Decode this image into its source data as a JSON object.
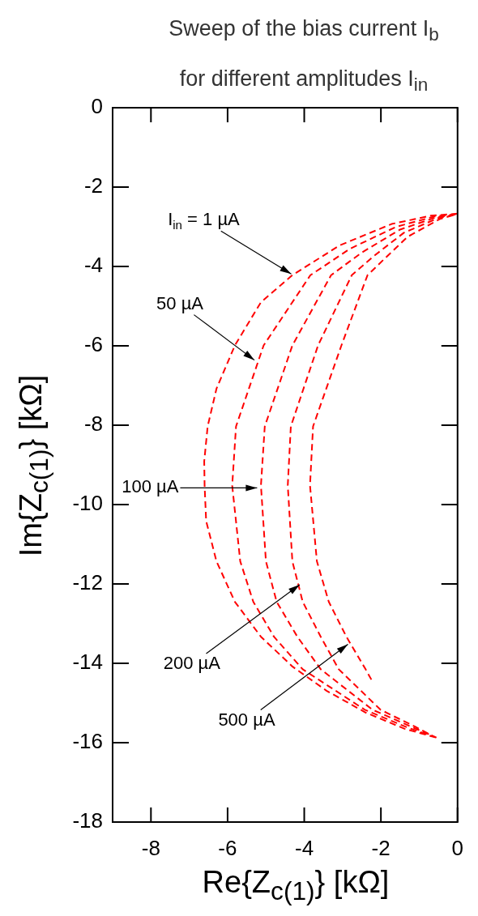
{
  "chart_data": {
    "type": "line",
    "title": "Sweep of the bias current I$_{b}$ for different amplitudes I$_{in}$",
    "xlabel": "Re{Z$_{c(1)}$} [kΩ]",
    "ylabel": "Im{Z$_{c(1)}$} [kΩ]",
    "xlim": [
      -9,
      0
    ],
    "xticks": [
      -8,
      -6,
      -4,
      -2,
      0
    ],
    "ylim": [
      -18,
      0
    ],
    "yticks": [
      -18,
      -16,
      -14,
      -12,
      -10,
      -8,
      -6,
      -4,
      -2,
      0
    ],
    "grid": false,
    "legend": false,
    "marker": "none",
    "line_style": "dashed",
    "series": [
      {
        "color": "#ff0000",
        "x": [
          0,
          -0.7,
          -1.72,
          -3.08,
          -4.31,
          -5.13,
          -5.81,
          -6.29,
          -6.52,
          -6.61,
          -6.6,
          -6.56,
          -6.29,
          -5.81,
          -5.13,
          -4.31,
          -3.42,
          -2.4,
          -1.38,
          -0.49
        ],
        "values": [
          -2.67,
          -2.72,
          -2.93,
          -3.47,
          -4.22,
          -4.9,
          -5.99,
          -7.08,
          -8.03,
          -8.91,
          -9.52,
          -10.41,
          -11.43,
          -12.45,
          -13.33,
          -14.08,
          -14.69,
          -15.24,
          -15.65,
          -15.89
        ]
      },
      {
        "color": "#ff0000",
        "x": [
          -0.03,
          -0.6,
          -1.6,
          -2.8,
          -3.84,
          -5.06,
          -5.78,
          -5.88,
          -5.67,
          -5.33,
          -4.79,
          -4.04,
          -2.42,
          -1.3,
          -0.55
        ],
        "values": [
          -2.68,
          -2.74,
          -3.0,
          -3.55,
          -4.22,
          -5.99,
          -8.03,
          -9.52,
          -11.43,
          -12.45,
          -13.33,
          -14.15,
          -15.17,
          -15.62,
          -15.87
        ]
      },
      {
        "color": "#ff0000",
        "x": [
          -0.06,
          -0.55,
          -1.5,
          -2.5,
          -3.3,
          -4.31,
          -5.03,
          -5.13,
          -5.0,
          -4.72,
          -4.18,
          -3.57,
          -2.22,
          -1.2,
          -0.6
        ],
        "values": [
          -2.69,
          -2.76,
          -3.07,
          -3.65,
          -4.22,
          -5.99,
          -8.03,
          -9.52,
          -11.43,
          -12.45,
          -13.33,
          -14.15,
          -15.17,
          -15.6,
          -15.85
        ]
      },
      {
        "color": "#ff0000",
        "x": [
          -0.09,
          -0.5,
          -1.4,
          -2.2,
          -2.76,
          -3.64,
          -4.35,
          -4.43,
          -4.31,
          -4.04,
          -3.57,
          -3.1,
          -2.01,
          -1.1,
          -0.65
        ],
        "values": [
          -2.7,
          -2.78,
          -3.15,
          -3.75,
          -4.22,
          -5.99,
          -8.03,
          -9.52,
          -11.43,
          -12.45,
          -13.33,
          -14.15,
          -15.17,
          -15.6,
          -15.83
        ]
      },
      {
        "color": "#ff0000",
        "x": [
          -0.12,
          -0.45,
          -1.3,
          -1.9,
          -2.35,
          -3.03,
          -3.77,
          -3.85,
          -3.67,
          -3.36,
          -2.9,
          -2.4,
          -2.22
        ],
        "values": [
          -2.71,
          -2.8,
          -3.25,
          -3.8,
          -4.22,
          -5.99,
          -8.03,
          -9.52,
          -11.43,
          -12.45,
          -13.33,
          -14.15,
          -14.46
        ]
      }
    ],
    "annotations": [
      {
        "text": "I$_{in}$ = 1 µA",
        "x": -4.34,
        "y": -4.19
      },
      {
        "text": "50 µA",
        "x": -5.3,
        "y": -6.36
      },
      {
        "text": "100 µA",
        "x": -5.23,
        "y": -9.58
      },
      {
        "text": "200 µA",
        "x": -4.12,
        "y": -12.02
      },
      {
        "text": "500 µA",
        "x": -2.86,
        "y": -13.52
      }
    ]
  }
}
